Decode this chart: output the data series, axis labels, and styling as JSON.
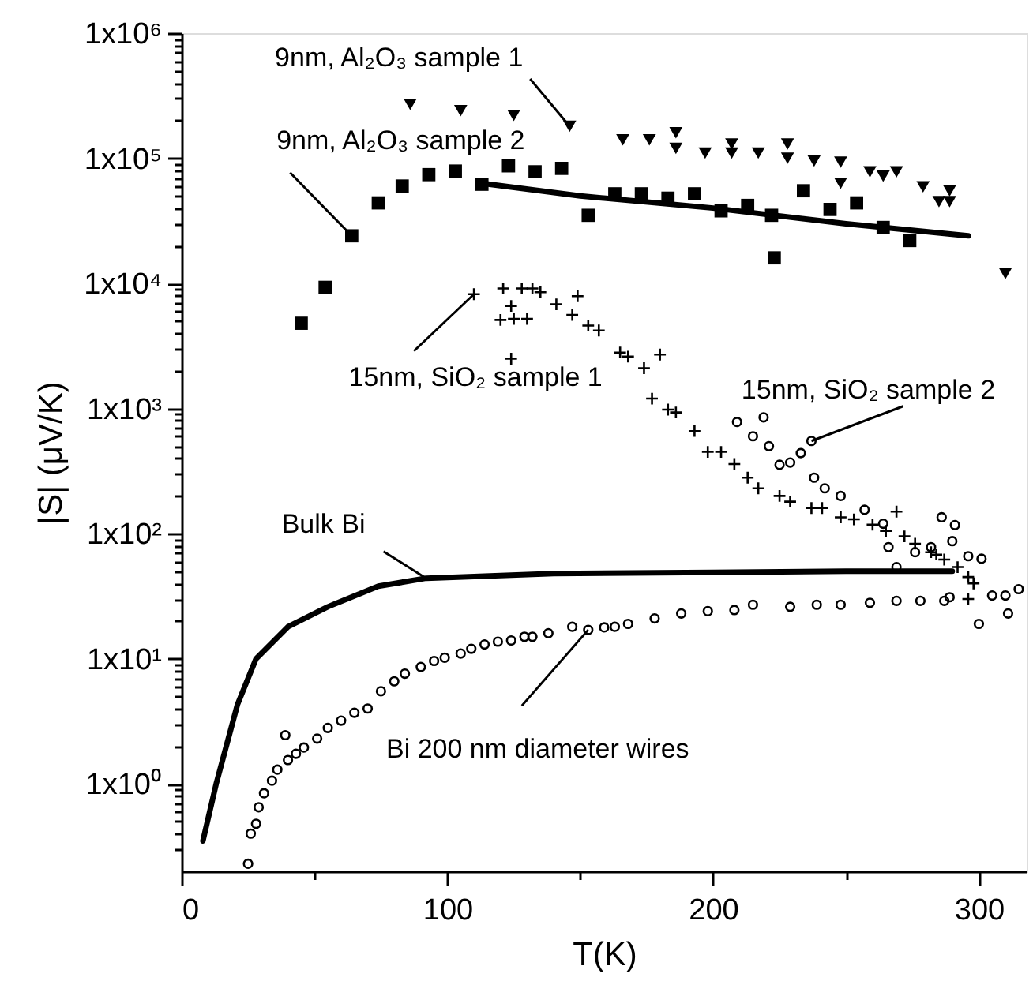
{
  "chart_data": {
    "type": "scatter",
    "xlabel": "T(K)",
    "ylabel": "|S| (μV/K)",
    "log": "y",
    "xlim": [
      0,
      318
    ],
    "ylim": [
      0.2,
      1000000
    ],
    "xticks": [
      0,
      {
        "value": 50,
        "label": null
      },
      100,
      {
        "value": 150,
        "label": null
      },
      200,
      {
        "value": 250,
        "label": null
      },
      300
    ],
    "yticks": [
      {
        "value": 0.3,
        "label": null
      },
      {
        "value": 0.4,
        "label": null
      },
      {
        "value": 0.5,
        "label": null
      },
      {
        "value": 0.6,
        "label": null
      },
      {
        "value": 0.7,
        "label": null
      },
      {
        "value": 0.8,
        "label": null
      },
      {
        "value": 0.9,
        "label": null
      },
      {
        "value": 1,
        "label": "1x10⁰"
      },
      {
        "value": 2,
        "label": null
      },
      {
        "value": 3,
        "label": null
      },
      {
        "value": 4,
        "label": null
      },
      {
        "value": 5,
        "label": null
      },
      {
        "value": 6,
        "label": null
      },
      {
        "value": 7,
        "label": null
      },
      {
        "value": 8,
        "label": null
      },
      {
        "value": 9,
        "label": null
      },
      {
        "value": 10,
        "label": "1x10¹"
      },
      {
        "value": 20,
        "label": null
      },
      {
        "value": 30,
        "label": null
      },
      {
        "value": 40,
        "label": null
      },
      {
        "value": 50,
        "label": null
      },
      {
        "value": 60,
        "label": null
      },
      {
        "value": 70,
        "label": null
      },
      {
        "value": 80,
        "label": null
      },
      {
        "value": 90,
        "label": null
      },
      {
        "value": 100,
        "label": "1x10²"
      },
      {
        "value": 200,
        "label": null
      },
      {
        "value": 300,
        "label": null
      },
      {
        "value": 400,
        "label": null
      },
      {
        "value": 500,
        "label": null
      },
      {
        "value": 600,
        "label": null
      },
      {
        "value": 700,
        "label": null
      },
      {
        "value": 800,
        "label": null
      },
      {
        "value": 900,
        "label": null
      },
      {
        "value": 1000,
        "label": "1x10³"
      },
      {
        "value": 2000,
        "label": null
      },
      {
        "value": 3000,
        "label": null
      },
      {
        "value": 4000,
        "label": null
      },
      {
        "value": 5000,
        "label": null
      },
      {
        "value": 6000,
        "label": null
      },
      {
        "value": 7000,
        "label": null
      },
      {
        "value": 8000,
        "label": null
      },
      {
        "value": 9000,
        "label": null
      },
      {
        "value": 10000,
        "label": "1x10⁴"
      },
      {
        "value": 20000,
        "label": null
      },
      {
        "value": 30000,
        "label": null
      },
      {
        "value": 40000,
        "label": null
      },
      {
        "value": 50000,
        "label": null
      },
      {
        "value": 60000,
        "label": null
      },
      {
        "value": 70000,
        "label": null
      },
      {
        "value": 80000,
        "label": null
      },
      {
        "value": 90000,
        "label": null
      },
      {
        "value": 100000,
        "label": "1x10⁵"
      },
      {
        "value": 200000,
        "label": null
      },
      {
        "value": 300000,
        "label": null
      },
      {
        "value": 400000,
        "label": null
      },
      {
        "value": 500000,
        "label": null
      },
      {
        "value": 600000,
        "label": null
      },
      {
        "value": 700000,
        "label": null
      },
      {
        "value": 800000,
        "label": null
      },
      {
        "value": 900000,
        "label": null
      },
      {
        "value": 1000000,
        "label": "1x10⁶"
      }
    ],
    "series": [
      {
        "name": "9nm, Al₂O₃ sample 1",
        "type": "scatter",
        "marker": "triangle",
        "color": "#000000",
        "x": [
          86,
          105,
          125,
          146,
          166,
          176,
          186,
          186,
          197,
          207,
          207,
          217,
          228,
          228,
          238,
          248,
          248,
          259,
          264,
          269,
          279,
          285,
          289,
          289,
          310
        ],
        "values": [
          270000,
          240000,
          220000,
          180000,
          140000,
          140000,
          160000,
          120000,
          110000,
          130000,
          110000,
          110000,
          130000,
          100000,
          95000,
          93000,
          63000,
          78000,
          72000,
          78000,
          59000,
          45000,
          55000,
          45000,
          12000
        ]
      },
      {
        "name": "9nm, Al₂O₃ sample 2",
        "type": "scatter",
        "marker": "square",
        "color": "#000000",
        "x": [
          45,
          54,
          64,
          74,
          83,
          93,
          103,
          113,
          123,
          133,
          143,
          153,
          163,
          173,
          183,
          193,
          203,
          213,
          222,
          223,
          234,
          244,
          254,
          264,
          274
        ],
        "values": [
          4800,
          9300,
          24000,
          44000,
          60000,
          74000,
          79000,
          62000,
          87000,
          78000,
          83000,
          35000,
          52000,
          52000,
          48000,
          52000,
          38000,
          42000,
          35000,
          16000,
          55000,
          39000,
          44000,
          28000,
          22000
        ]
      },
      {
        "type": "line",
        "color": "#000000",
        "x": [
          113,
          150,
          200,
          250,
          296
        ],
        "values": [
          63000,
          50000,
          40000,
          30000,
          24000
        ]
      },
      {
        "name": "15nm, SiO₂ sample 1",
        "type": "scatter",
        "marker": "cross",
        "color": "#000000",
        "x": [
          110,
          121,
          128,
          132,
          120,
          124,
          125,
          130,
          124,
          135,
          141,
          147,
          149,
          153,
          157,
          165,
          168,
          174,
          177,
          180,
          183,
          186,
          193,
          198,
          203,
          208,
          213,
          217,
          225,
          229,
          237,
          241,
          248,
          253,
          260,
          265,
          269,
          272,
          276,
          282,
          284,
          287,
          292,
          296,
          298,
          296
        ],
        "values": [
          8200,
          9100,
          9100,
          9100,
          5100,
          6600,
          5200,
          5200,
          2500,
          8500,
          6800,
          5600,
          7900,
          4600,
          4200,
          2800,
          2600,
          2100,
          1200,
          2700,
          980,
          930,
          660,
          450,
          450,
          360,
          280,
          230,
          200,
          180,
          160,
          160,
          135,
          130,
          118,
          105,
          150,
          95,
          83,
          71,
          68,
          62,
          54,
          45,
          40,
          30
        ]
      },
      {
        "name": "15nm, SiO₂ sample 2",
        "type": "scatter",
        "marker": "circle",
        "color": "#000000",
        "x": [
          209,
          215,
          219,
          221,
          225,
          229,
          233,
          237,
          238,
          242,
          248,
          257,
          264,
          266,
          269,
          276,
          282,
          286,
          291,
          290,
          296,
          301,
          305,
          310,
          315,
          311,
          300
        ],
        "values": [
          780,
          600,
          850,
          500,
          355,
          370,
          440,
          550,
          280,
          230,
          200,
          155,
          120,
          78,
          54,
          71,
          78,
          135,
          117,
          87,
          66,
          63,
          32,
          32,
          36,
          23,
          19
        ]
      },
      {
        "name": "Bulk Bi",
        "type": "line",
        "color": "#000000",
        "x": [
          8,
          13,
          21,
          28,
          40,
          55,
          74,
          92,
          140,
          200,
          250,
          290
        ],
        "values": [
          0.35,
          1.0,
          4.3,
          10,
          18,
          26,
          38,
          44,
          48,
          49,
          50,
          50
        ]
      },
      {
        "name": "Bi 200 nm diameter wires",
        "type": "scatter",
        "marker": "circle",
        "color": "#000000",
        "x": [
          25,
          26,
          28,
          29,
          31,
          34,
          36,
          39,
          40,
          43,
          46,
          51,
          55,
          60,
          65,
          70,
          75,
          80,
          84,
          90,
          95,
          99,
          105,
          109,
          114,
          119,
          124,
          129,
          132,
          138,
          147,
          153,
          159,
          163,
          168,
          178,
          188,
          198,
          208,
          215,
          229,
          239,
          248,
          259,
          269,
          278,
          287,
          289
        ],
        "values": [
          0.23,
          0.4,
          0.48,
          0.65,
          0.84,
          1.06,
          1.3,
          2.45,
          1.55,
          1.74,
          1.95,
          2.3,
          2.8,
          3.2,
          3.7,
          4.0,
          5.5,
          6.6,
          7.6,
          8.6,
          9.6,
          10.2,
          11,
          12,
          13,
          13.7,
          14,
          15,
          15,
          16,
          18,
          17,
          17.8,
          18,
          19,
          21,
          23,
          24,
          24.5,
          27,
          26,
          27,
          27,
          28,
          29,
          29,
          29,
          31
        ]
      }
    ]
  }
}
